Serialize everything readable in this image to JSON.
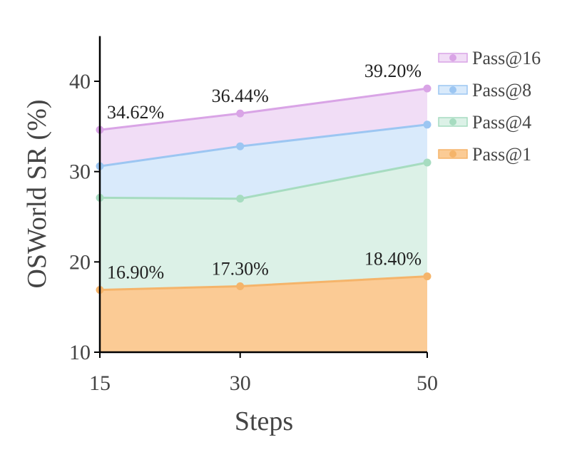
{
  "chart_data": {
    "type": "area",
    "xlabel": "Steps",
    "ylabel": "OSWorld SR (%)",
    "x": [
      15,
      30,
      50
    ],
    "x_ticks": [
      "15",
      "30",
      "50"
    ],
    "ylim": [
      10,
      45
    ],
    "y_ticks": [
      10,
      20,
      30,
      40
    ],
    "grid": false,
    "legend_position": "top-right",
    "series": [
      {
        "name": "Pass@16",
        "values": [
          34.62,
          36.44,
          39.2
        ],
        "color": "#d9a4e6",
        "fill": "#f1ddf6"
      },
      {
        "name": "Pass@8",
        "values": [
          30.6,
          32.8,
          35.2
        ],
        "color": "#9cc6f2",
        "fill": "#d9eafb"
      },
      {
        "name": "Pass@4",
        "values": [
          27.1,
          27.0,
          31.0
        ],
        "color": "#a6dcc0",
        "fill": "#dcf1e7"
      },
      {
        "name": "Pass@1",
        "values": [
          16.9,
          17.3,
          18.4
        ],
        "color": "#f5b46a",
        "fill": "#fbcb95"
      }
    ],
    "annotations": [
      {
        "series": "Pass@16",
        "index": 0,
        "text": "34.62%"
      },
      {
        "series": "Pass@16",
        "index": 1,
        "text": "36.44%"
      },
      {
        "series": "Pass@16",
        "index": 2,
        "text": "39.20%"
      },
      {
        "series": "Pass@1",
        "index": 0,
        "text": "16.90%"
      },
      {
        "series": "Pass@1",
        "index": 1,
        "text": "17.30%"
      },
      {
        "series": "Pass@1",
        "index": 2,
        "text": "18.40%"
      }
    ]
  }
}
